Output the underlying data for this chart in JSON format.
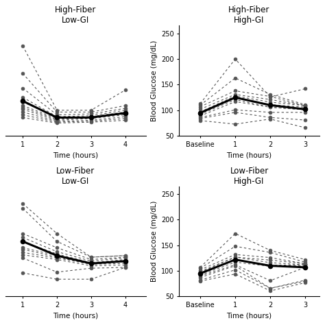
{
  "panels": [
    {
      "title": "High-Fiber\nLow-GI",
      "has_baseline": false,
      "has_ylabel": false,
      "xlabel": "Time (hours)",
      "xticks": [
        1,
        2,
        3,
        4
      ],
      "xticklabels": [
        "1",
        "2",
        "3",
        "4"
      ],
      "xlim": [
        0.5,
        4.6
      ],
      "ylim": [
        80,
        200
      ],
      "yticks": [],
      "individual_lines": [
        [
          178,
          108,
          108,
          130
        ],
        [
          148,
          106,
          106,
          113
        ],
        [
          132,
          103,
          104,
          110
        ],
        [
          122,
          101,
          102,
          108
        ],
        [
          117,
          100,
          101,
          106
        ],
        [
          113,
          99,
          100,
          105
        ],
        [
          111,
          98,
          100,
          104
        ],
        [
          109,
          97,
          99,
          103
        ],
        [
          106,
          96,
          97,
          101
        ],
        [
          103,
          95,
          96,
          99
        ],
        [
          100,
          94,
          95,
          97
        ]
      ],
      "mean_line": [
        118,
        100,
        100,
        105
      ]
    },
    {
      "title": "High-Fiber\nHigh-GI",
      "has_baseline": true,
      "has_ylabel": true,
      "xlabel": "Time (hours)",
      "xticks": [
        0,
        1,
        2,
        3
      ],
      "xticklabels": [
        "Baseline",
        "1",
        "2",
        "3"
      ],
      "xlim": [
        -0.6,
        3.4
      ],
      "ylim": [
        50,
        265
      ],
      "yticks": [
        50,
        100,
        150,
        200,
        250
      ],
      "individual_lines": [
        [
          113,
          200,
          126,
          142
        ],
        [
          110,
          163,
          131,
          111
        ],
        [
          107,
          138,
          127,
          109
        ],
        [
          102,
          131,
          121,
          109
        ],
        [
          97,
          128,
          116,
          109
        ],
        [
          95,
          126,
          111,
          106
        ],
        [
          92,
          121,
          106,
          101
        ],
        [
          89,
          117,
          106,
          101
        ],
        [
          86,
          101,
          96,
          96
        ],
        [
          84,
          96,
          86,
          81
        ],
        [
          80,
          73,
          83,
          66
        ]
      ],
      "mean_line": [
        95,
        125,
        110,
        102
      ]
    },
    {
      "title": "Low-Fiber\nLow-GI",
      "has_baseline": false,
      "has_ylabel": false,
      "xlabel": "Time (hours)",
      "xticks": [
        1,
        2,
        3,
        4
      ],
      "xticklabels": [
        "1",
        "2",
        "3",
        "4"
      ],
      "xlim": [
        0.5,
        4.6
      ],
      "ylim": [
        60,
        200
      ],
      "yticks": [],
      "individual_lines": [
        [
          178,
          140,
          110,
          112
        ],
        [
          172,
          130,
          110,
          112
        ],
        [
          140,
          122,
          107,
          110
        ],
        [
          135,
          117,
          105,
          109
        ],
        [
          130,
          114,
          103,
          107
        ],
        [
          122,
          112,
          102,
          105
        ],
        [
          120,
          110,
          101,
          104
        ],
        [
          116,
          109,
          101,
          102
        ],
        [
          113,
          107,
          99,
          100
        ],
        [
          109,
          91,
          96,
          97
        ],
        [
          90,
          82,
          82,
          97
        ]
      ],
      "mean_line": [
        130,
        112,
        102,
        105
      ]
    },
    {
      "title": "Low-Fiber\nHigh-GI",
      "has_baseline": true,
      "has_ylabel": true,
      "xlabel": "Time (hours)",
      "xticks": [
        0,
        1,
        2,
        3
      ],
      "xticklabels": [
        "Baseline",
        "1",
        "2",
        "3"
      ],
      "xlim": [
        -0.6,
        3.4
      ],
      "ylim": [
        50,
        265
      ],
      "yticks": [
        50,
        100,
        150,
        200,
        250
      ],
      "individual_lines": [
        [
          107,
          173,
          140,
          122
        ],
        [
          105,
          148,
          136,
          117
        ],
        [
          102,
          132,
          126,
          114
        ],
        [
          99,
          127,
          121,
          114
        ],
        [
          97,
          127,
          116,
          112
        ],
        [
          94,
          122,
          111,
          112
        ],
        [
          92,
          117,
          109,
          110
        ],
        [
          90,
          112,
          81,
          107
        ],
        [
          87,
          110,
          66,
          82
        ],
        [
          82,
          102,
          66,
          80
        ],
        [
          80,
          94,
          61,
          77
        ]
      ],
      "mean_line": [
        95,
        122,
        110,
        107
      ]
    }
  ],
  "individual_color": "#555555",
  "mean_color": "#000000",
  "mean_linewidth": 2.2,
  "individual_linewidth": 0.8,
  "marker_size": 3.5,
  "mean_marker_size": 4.5,
  "title_fontsize": 8.5,
  "label_fontsize": 7.5,
  "tick_fontsize": 7
}
